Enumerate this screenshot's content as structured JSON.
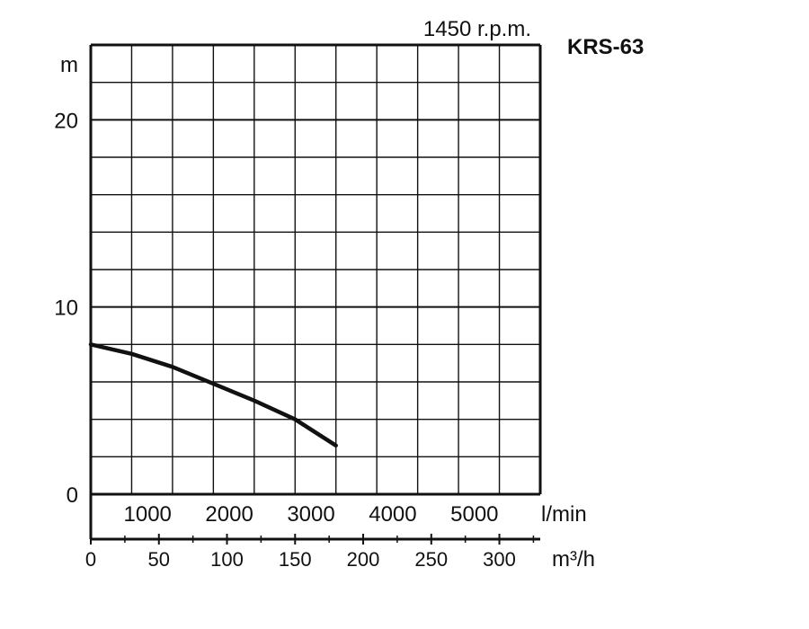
{
  "chart_data": {
    "type": "line",
    "title": "KRS-63",
    "subtitle": "1450 r.p.m.",
    "ylabel": "m",
    "ylim": [
      0,
      24
    ],
    "yticks": [
      0,
      10,
      20
    ],
    "xlim_lmin": [
      0,
      5500
    ],
    "xticks_lmin": [
      1000,
      2000,
      3000,
      4000,
      5000
    ],
    "xlabel_lmin": "l/min",
    "xticks_m3h": [
      0,
      50,
      100,
      150,
      200,
      250,
      300
    ],
    "xlabel_m3h": "m³/h",
    "grid": true,
    "series": [
      {
        "x": [
          0,
          500,
          1000,
          1500,
          2000,
          2500,
          3000
        ],
        "y": [
          8.0,
          7.5,
          6.8,
          5.9,
          5.0,
          4.0,
          2.6
        ]
      }
    ]
  }
}
